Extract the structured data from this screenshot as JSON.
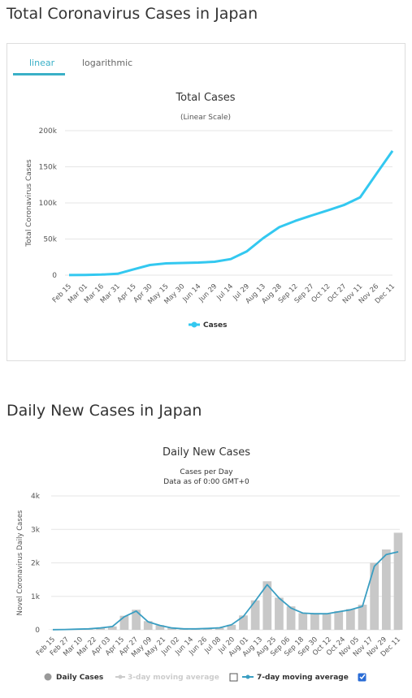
{
  "page": {
    "title1": "Total Coronavirus Cases in Japan",
    "title2": "Daily New Cases in Japan"
  },
  "tabs": [
    {
      "label": "linear",
      "active": true
    },
    {
      "label": "logarithmic",
      "active": false
    }
  ],
  "colors": {
    "accent": "#3ab0c7",
    "total_line": "#33c8f0",
    "bars": "#c8c8c8",
    "avg_line": "#3a9ec2",
    "grid": "#e6e6e6"
  },
  "chart_data": [
    {
      "type": "line",
      "title": "Total Cases",
      "subtitle": "(Linear Scale)",
      "ylabel": "Total Coronavirus Cases",
      "xlabel": "",
      "ylim": [
        0,
        200000
      ],
      "y_ticks": [
        0,
        50000,
        100000,
        150000,
        200000
      ],
      "y_tick_labels": [
        "0",
        "50k",
        "100k",
        "150k",
        "200k"
      ],
      "x_tick_labels": [
        "Feb 15",
        "Mar 01",
        "Mar 16",
        "Mar 31",
        "Apr 15",
        "Apr 30",
        "May 15",
        "May 30",
        "Jun 14",
        "Jun 29",
        "Jul 14",
        "Jul 29",
        "Aug 13",
        "Aug 28",
        "Sep 12",
        "Sep 27",
        "Oct 12",
        "Oct 27",
        "Nov 11",
        "Nov 26",
        "Dec 11"
      ],
      "grid": true,
      "legend": "bottom",
      "series": [
        {
          "name": "Cases",
          "values": [
            59,
            242,
            814,
            1953,
            8100,
            14088,
            16237,
            16851,
            17439,
            18593,
            22220,
            33049,
            51179,
            66423,
            75218,
            82567,
            89655,
            97074,
            107711,
            140138,
            172000
          ]
        }
      ]
    },
    {
      "type": "bar",
      "title": "Daily New Cases",
      "subtitle": "Cases per Day",
      "subtitle2": "Data as of 0:00 GMT+0",
      "ylabel": "Novel Coronavirus Daily Cases",
      "xlabel": "",
      "ylim": [
        0,
        4000
      ],
      "y_ticks": [
        0,
        1000,
        2000,
        3000,
        4000
      ],
      "y_tick_labels": [
        "0",
        "1k",
        "2k",
        "3k",
        "4k"
      ],
      "x_tick_labels": [
        "Feb 15",
        "Feb 27",
        "Mar 10",
        "Mar 22",
        "Apr 03",
        "Apr 15",
        "Apr 27",
        "May 09",
        "May 21",
        "Jun 02",
        "Jun 14",
        "Jun 26",
        "Jul 08",
        "Jul 20",
        "Aug 01",
        "Aug 13",
        "Aug 25",
        "Sep 06",
        "Sep 18",
        "Sep 30",
        "Oct 12",
        "Oct 24",
        "Nov 05",
        "Nov 17",
        "Nov 29",
        "Dec 11"
      ],
      "grid": true,
      "legend": "bottom",
      "legend_items": [
        {
          "label": "Daily Cases",
          "enabled": true
        },
        {
          "label": "3-day moving average",
          "enabled": false
        },
        {
          "label": "7-day moving average",
          "enabled": true
        }
      ],
      "series": [
        {
          "name": "Daily Cases",
          "values": [
            5,
            10,
            20,
            30,
            60,
            100,
            420,
            600,
            260,
            140,
            60,
            30,
            30,
            40,
            60,
            150,
            430,
            880,
            1450,
            960,
            700,
            500,
            500,
            480,
            560,
            620,
            750,
            2000,
            2400,
            2900
          ]
        },
        {
          "name": "7-day moving average",
          "values": [
            5,
            10,
            20,
            30,
            55,
            100,
            390,
            560,
            240,
            130,
            55,
            30,
            30,
            40,
            60,
            150,
            400,
            860,
            1350,
            950,
            650,
            500,
            480,
            480,
            540,
            600,
            700,
            1900,
            2250,
            2330
          ]
        }
      ]
    }
  ]
}
